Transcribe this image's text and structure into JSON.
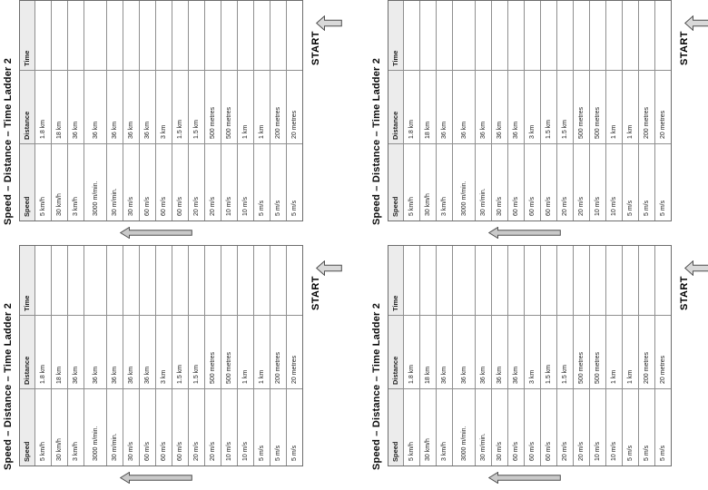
{
  "sheet": {
    "title": "Speed – Distance – Time Ladder 2",
    "start_label": "START",
    "columns": [
      "Speed",
      "Distance",
      "Time"
    ],
    "rows": [
      {
        "speed": "5 km/h",
        "distance": "1.8 km",
        "time": ""
      },
      {
        "speed": "30 km/h",
        "distance": "18 km",
        "time": ""
      },
      {
        "speed": "3 km/h",
        "distance": "36 km",
        "time": ""
      },
      {
        "speed": "3000 m/min.",
        "distance": "36 km",
        "time": ""
      },
      {
        "speed": "30 m/min.",
        "distance": "36 km",
        "time": ""
      },
      {
        "speed": "30 m/s",
        "distance": "36 km",
        "time": ""
      },
      {
        "speed": "60 m/s",
        "distance": "36 km",
        "time": ""
      },
      {
        "speed": "60 m/s",
        "distance": "3 km",
        "time": ""
      },
      {
        "speed": "60 m/s",
        "distance": "1.5 km",
        "time": ""
      },
      {
        "speed": "20 m/s",
        "distance": "1.5 km",
        "time": ""
      },
      {
        "speed": "20 m/s",
        "distance": "500 metres",
        "time": ""
      },
      {
        "speed": "10 m/s",
        "distance": "500 metres",
        "time": ""
      },
      {
        "speed": "10 m/s",
        "distance": "1 km",
        "time": ""
      },
      {
        "speed": "5 m/s",
        "distance": "1 km",
        "time": ""
      },
      {
        "speed": "5 m/s",
        "distance": "200 metres",
        "time": ""
      },
      {
        "speed": "5 m/s",
        "distance": "20 metres",
        "time": ""
      }
    ],
    "icons": {
      "ladder_direction_arrow": "up-block-arrow-icon",
      "start_arrow": "up-block-arrow-icon"
    },
    "colors": {
      "header_fill": "#ececec",
      "grid_line": "#8f8f8f",
      "table_border": "#6d6d6d",
      "text": "#1f1f1f",
      "arrow_fill": "#c9c9c9",
      "arrow_outline": "#4f4f4f",
      "start_arrow_fill": "#d9d9d9"
    }
  }
}
